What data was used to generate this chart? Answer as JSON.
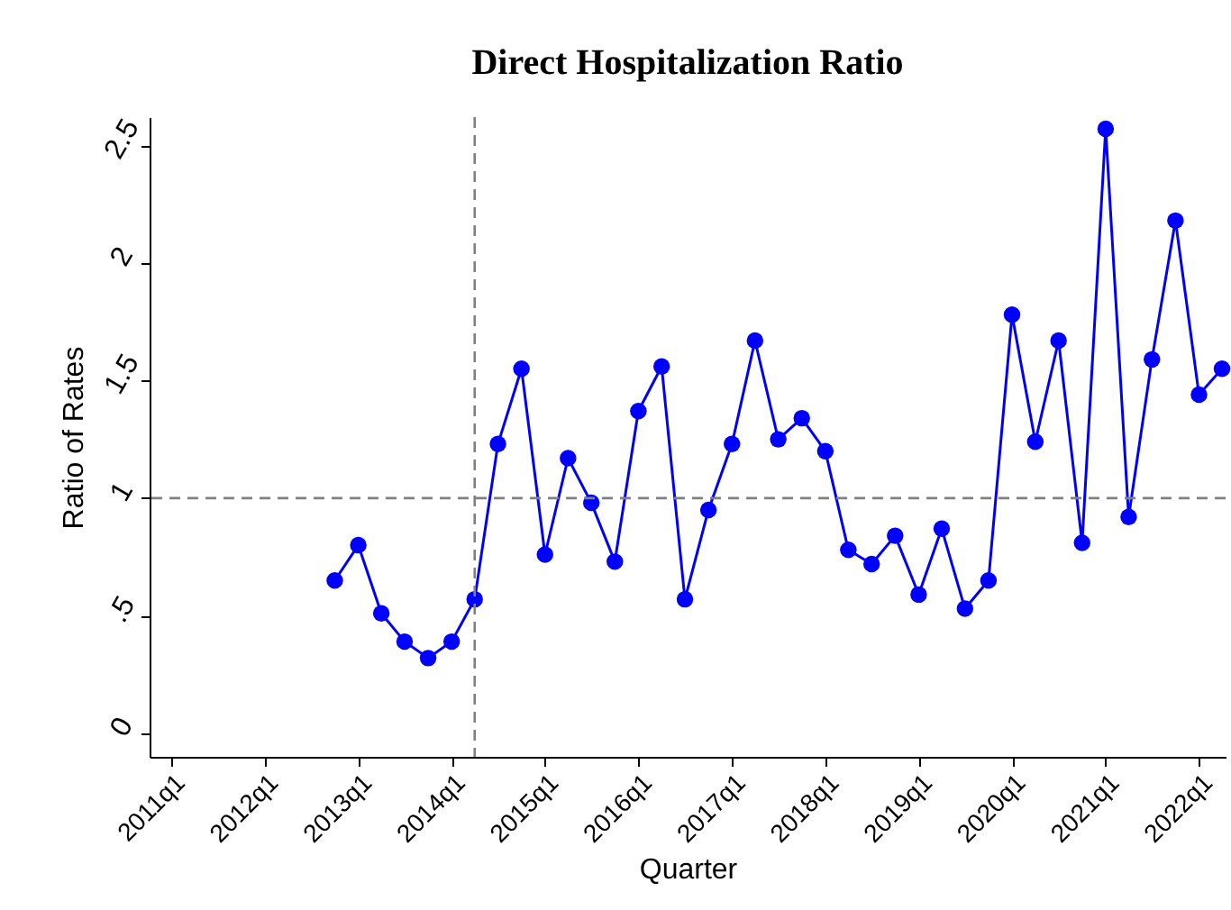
{
  "chart_data": {
    "type": "line",
    "title": "Direct Hospitalization Ratio",
    "xlabel": "Quarter",
    "ylabel": "Ratio of Rates",
    "x": [
      "2012-10",
      "2013-01",
      "2013-04",
      "2013-07",
      "2013-10",
      "2014-01",
      "2014-04",
      "2014-07",
      "2014-10",
      "2015-01",
      "2015-04",
      "2015-07",
      "2015-10",
      "2016-01",
      "2016-04",
      "2016-07",
      "2016-10",
      "2017-01",
      "2017-04",
      "2017-07",
      "2017-10",
      "2018-01",
      "2018-04",
      "2018-07",
      "2018-10",
      "2019-01",
      "2019-04",
      "2019-07",
      "2019-10",
      "2020-01",
      "2020-04",
      "2020-07",
      "2020-10",
      "2021-01",
      "2021-04",
      "2021-07",
      "2021-10",
      "2022-01",
      "2022-04"
    ],
    "series": [
      {
        "color": "#0000ff",
        "values": [
          0.65,
          0.8,
          0.51,
          0.39,
          0.32,
          0.39,
          0.57,
          1.23,
          1.55,
          0.76,
          1.17,
          0.98,
          0.73,
          1.37,
          1.56,
          0.57,
          0.95,
          1.23,
          1.67,
          1.25,
          1.34,
          1.2,
          0.78,
          0.72,
          0.84,
          0.59,
          0.87,
          0.53,
          0.65,
          1.78,
          1.24,
          1.67,
          0.81,
          2.57,
          0.92,
          1.59,
          2.18,
          1.44,
          1.55
        ]
      }
    ],
    "xlim": [
      "2010-10-08",
      "2022-04-15"
    ],
    "xticks": [
      {
        "value": "2011-01",
        "label": "2011q1"
      },
      {
        "value": "2012-01",
        "label": "2012q1"
      },
      {
        "value": "2013-01",
        "label": "2013q1"
      },
      {
        "value": "2014-01",
        "label": "2014q1"
      },
      {
        "value": "2015-01",
        "label": "2015q1"
      },
      {
        "value": "2016-01",
        "label": "2016q1"
      },
      {
        "value": "2017-01",
        "label": "2017q1"
      },
      {
        "value": "2018-01",
        "label": "2018q1"
      },
      {
        "value": "2019-01",
        "label": "2019q1"
      },
      {
        "value": "2020-01",
        "label": "2020q1"
      },
      {
        "value": "2021-01",
        "label": "2021q1"
      },
      {
        "value": "2022-01",
        "label": "2022q1"
      }
    ],
    "ylim": [
      -0.1,
      2.62
    ],
    "yticks": [
      0,
      {
        "value": 0.5,
        "label": ".5"
      },
      1,
      1.5,
      2,
      2.5
    ],
    "ref_lines": [
      {
        "axis": "y",
        "value": 1,
        "color": "#808080",
        "line_style": "dashed"
      },
      {
        "axis": "x",
        "value": "2014-04",
        "color": "#808080",
        "line_style": "dashed"
      }
    ],
    "grid": false,
    "marker": "circle",
    "line_style": "solid"
  }
}
